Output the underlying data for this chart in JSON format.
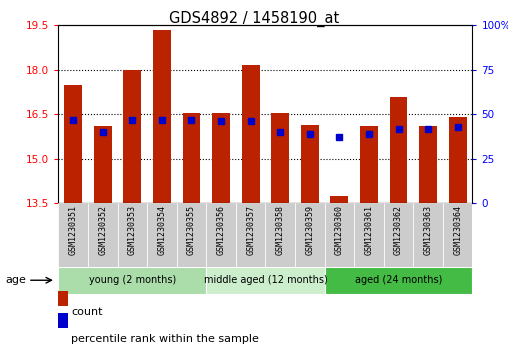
{
  "title": "GDS4892 / 1458190_at",
  "samples": [
    "GSM1230351",
    "GSM1230352",
    "GSM1230353",
    "GSM1230354",
    "GSM1230355",
    "GSM1230356",
    "GSM1230357",
    "GSM1230358",
    "GSM1230359",
    "GSM1230360",
    "GSM1230361",
    "GSM1230362",
    "GSM1230363",
    "GSM1230364"
  ],
  "counts": [
    17.5,
    16.1,
    18.0,
    19.35,
    16.55,
    16.55,
    18.15,
    16.55,
    16.15,
    13.75,
    16.1,
    17.1,
    16.1,
    16.4
  ],
  "percentiles": [
    47,
    40,
    47,
    47,
    47,
    46,
    46,
    40,
    39,
    37,
    39,
    42,
    42,
    43
  ],
  "ylim_left": [
    13.5,
    19.5
  ],
  "ylim_right": [
    0,
    100
  ],
  "yticks_left": [
    13.5,
    15.0,
    16.5,
    18.0,
    19.5
  ],
  "yticks_right": [
    0,
    25,
    50,
    75,
    100
  ],
  "ytick_labels_right": [
    "0",
    "25",
    "50",
    "75",
    "100%"
  ],
  "bar_color": "#bb2200",
  "dot_color": "#0000cc",
  "groups": [
    {
      "label": "young (2 months)",
      "start": 0,
      "end": 5,
      "color": "#aaddaa"
    },
    {
      "label": "middle aged (12 months)",
      "start": 5,
      "end": 9,
      "color": "#cceecc"
    },
    {
      "label": "aged (24 months)",
      "start": 9,
      "end": 14,
      "color": "#44bb44"
    }
  ],
  "legend_count_label": "count",
  "legend_percentile_label": "percentile rank within the sample"
}
